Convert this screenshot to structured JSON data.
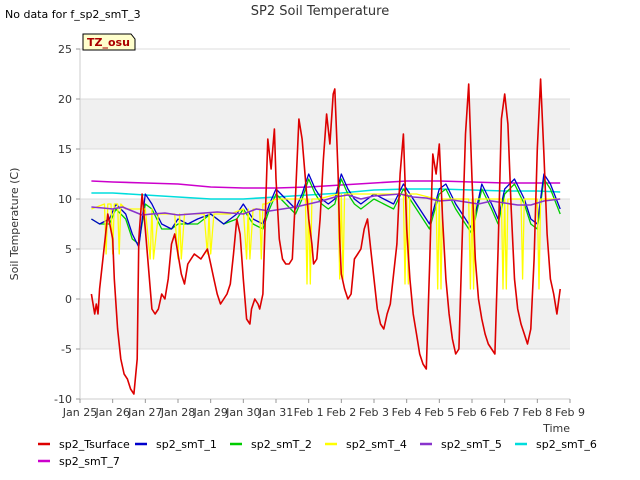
{
  "chart_data": {
    "type": "line",
    "title": "SP2 Soil Temperature",
    "note": "No data for f_sp2_smT_3",
    "badge": "TZ_osu",
    "xlabel": "Time",
    "ylabel": "Soil Temperature (C)",
    "ylim": [
      -10,
      25
    ],
    "yticks": [
      -10,
      -5,
      0,
      5,
      10,
      15,
      20,
      25
    ],
    "xlim": [
      0,
      15
    ],
    "xticks": [
      {
        "v": 0,
        "label": "Jan 25"
      },
      {
        "v": 1,
        "label": "Jan 26"
      },
      {
        "v": 2,
        "label": "Jan 27"
      },
      {
        "v": 3,
        "label": "Jan 28"
      },
      {
        "v": 4,
        "label": "Jan 29"
      },
      {
        "v": 5,
        "label": "Jan 30"
      },
      {
        "v": 6,
        "label": "Jan 31"
      },
      {
        "v": 7,
        "label": "Feb 1"
      },
      {
        "v": 8,
        "label": "Feb 2"
      },
      {
        "v": 9,
        "label": "Feb 3"
      },
      {
        "v": 10,
        "label": "Feb 4"
      },
      {
        "v": 11,
        "label": "Feb 5"
      },
      {
        "v": 12,
        "label": "Feb 6"
      },
      {
        "v": 13,
        "label": "Feb 7"
      },
      {
        "v": 14,
        "label": "Feb 8"
      },
      {
        "v": 15,
        "label": "Feb 9"
      }
    ],
    "grid": "horizontal bands",
    "legend_position": "bottom",
    "series": [
      {
        "name": "sp2_Tsurface",
        "color": "#dd0000",
        "width": 1.6,
        "x": [
          0.35,
          0.45,
          0.5,
          0.55,
          0.6,
          0.7,
          0.85,
          1.0,
          1.05,
          1.15,
          1.25,
          1.35,
          1.45,
          1.55,
          1.65,
          1.75,
          1.8,
          1.9,
          2.0,
          2.1,
          2.2,
          2.3,
          2.4,
          2.5,
          2.6,
          2.7,
          2.8,
          2.9,
          3.0,
          3.1,
          3.2,
          3.3,
          3.5,
          3.7,
          3.9,
          4.0,
          4.1,
          4.2,
          4.3,
          4.5,
          4.6,
          4.7,
          4.8,
          4.9,
          5.0,
          5.1,
          5.2,
          5.25,
          5.35,
          5.45,
          5.5,
          5.6,
          5.65,
          5.75,
          5.85,
          5.95,
          6.0,
          6.1,
          6.2,
          6.3,
          6.4,
          6.5,
          6.6,
          6.7,
          6.8,
          6.9,
          7.0,
          7.1,
          7.15,
          7.25,
          7.35,
          7.45,
          7.55,
          7.65,
          7.75,
          7.8,
          7.85,
          7.9,
          7.95,
          8.0,
          8.1,
          8.2,
          8.3,
          8.4,
          8.5,
          8.6,
          8.7,
          8.8,
          8.9,
          9.0,
          9.1,
          9.2,
          9.3,
          9.4,
          9.5,
          9.6,
          9.7,
          9.8,
          9.9,
          10.0,
          10.1,
          10.2,
          10.3,
          10.4,
          10.5,
          10.6,
          10.7,
          10.8,
          10.9,
          11.0,
          11.1,
          11.2,
          11.3,
          11.4,
          11.5,
          11.6,
          11.7,
          11.8,
          11.9,
          12.0,
          12.1,
          12.2,
          12.3,
          12.4,
          12.5,
          12.6,
          12.7,
          12.8,
          12.9,
          13.0,
          13.1,
          13.2,
          13.3,
          13.4,
          13.5,
          13.6,
          13.7,
          13.8,
          13.9,
          14.0,
          14.1,
          14.2,
          14.3,
          14.4,
          14.5,
          14.6,
          14.7
        ],
        "y": [
          0.5,
          -1.5,
          -0.5,
          -1.5,
          1.0,
          4.0,
          8.5,
          6.0,
          2.0,
          -3.0,
          -6.0,
          -7.5,
          -8.0,
          -9.0,
          -9.5,
          -6.0,
          6.0,
          10.5,
          7.0,
          3.0,
          -1.0,
          -1.5,
          -1.0,
          0.5,
          0.0,
          2.0,
          5.5,
          6.5,
          4.5,
          2.5,
          1.5,
          3.5,
          4.5,
          4.0,
          5.0,
          3.5,
          2.0,
          0.5,
          -0.5,
          0.5,
          1.5,
          4.5,
          8.0,
          6.5,
          2.0,
          -2.0,
          -2.5,
          -1.0,
          0.0,
          -0.5,
          -1.0,
          0.5,
          6.0,
          16.0,
          13.0,
          17.0,
          12.0,
          6.0,
          4.0,
          3.5,
          3.5,
          4.0,
          10.5,
          18.0,
          16.0,
          12.0,
          8.0,
          5.5,
          3.5,
          4.0,
          8.0,
          14.0,
          18.5,
          15.5,
          20.5,
          21.0,
          17.0,
          12.5,
          6.0,
          2.5,
          1.0,
          0.0,
          0.5,
          4.0,
          4.5,
          5.0,
          7.0,
          8.0,
          5.0,
          2.0,
          -1.0,
          -2.5,
          -3.0,
          -1.5,
          -0.5,
          2.5,
          5.5,
          12.5,
          16.5,
          7.0,
          2.0,
          -1.5,
          -3.5,
          -5.5,
          -6.5,
          -7.0,
          3.0,
          14.5,
          12.5,
          15.5,
          8.0,
          2.0,
          -1.5,
          -4.0,
          -5.5,
          -5.0,
          6.0,
          16.5,
          21.5,
          12.0,
          4.0,
          0.0,
          -2.0,
          -3.5,
          -4.5,
          -5.0,
          -5.5,
          5.0,
          18.0,
          20.5,
          17.5,
          9.0,
          2.0,
          -1.0,
          -2.5,
          -3.5,
          -4.5,
          -3.0,
          4.0,
          15.0,
          22.0,
          14.5,
          6.5,
          2.0,
          0.5,
          -1.5,
          1.0
        ]
      },
      {
        "name": "sp2_smT_1",
        "color": "#0000cc",
        "width": 1.3,
        "x": [
          0.35,
          0.6,
          0.9,
          1.1,
          1.4,
          1.6,
          1.8,
          2.0,
          2.2,
          2.5,
          2.8,
          3.0,
          3.3,
          3.6,
          4.0,
          4.4,
          4.8,
          5.0,
          5.3,
          5.6,
          5.8,
          6.0,
          6.3,
          6.6,
          6.8,
          7.0,
          7.2,
          7.4,
          7.6,
          7.8,
          8.0,
          8.2,
          8.4,
          8.6,
          8.8,
          9.0,
          9.3,
          9.6,
          9.9,
          10.1,
          10.4,
          10.7,
          11.0,
          11.2,
          11.5,
          11.8,
          12.0,
          12.3,
          12.6,
          12.8,
          13.0,
          13.3,
          13.6,
          13.8,
          14.0,
          14.2,
          14.4,
          14.7
        ],
        "y": [
          8.0,
          7.5,
          8.0,
          9.5,
          8.5,
          6.5,
          5.2,
          10.5,
          9.5,
          7.5,
          7.0,
          8.0,
          7.5,
          8.0,
          8.5,
          7.5,
          8.5,
          9.5,
          8.0,
          7.5,
          9.5,
          11.0,
          10.0,
          9.0,
          10.5,
          12.5,
          11.0,
          10.0,
          9.5,
          10.0,
          12.5,
          11.0,
          10.0,
          9.5,
          10.0,
          10.5,
          10.0,
          9.5,
          11.5,
          10.5,
          9.0,
          7.5,
          11.0,
          11.5,
          9.5,
          8.0,
          7.0,
          11.5,
          9.5,
          8.0,
          11.0,
          12.0,
          10.0,
          8.0,
          7.5,
          12.5,
          11.5,
          9.0
        ]
      },
      {
        "name": "sp2_smT_2",
        "color": "#00cc00",
        "width": 1.3,
        "x": [
          0.35,
          0.6,
          0.9,
          1.1,
          1.4,
          1.6,
          1.8,
          2.0,
          2.2,
          2.5,
          2.8,
          3.0,
          3.3,
          3.6,
          4.0,
          4.4,
          4.8,
          5.0,
          5.3,
          5.6,
          5.8,
          6.0,
          6.3,
          6.6,
          6.8,
          7.0,
          7.2,
          7.4,
          7.6,
          7.8,
          8.0,
          8.2,
          8.4,
          8.6,
          8.8,
          9.0,
          9.3,
          9.6,
          9.9,
          10.1,
          10.4,
          10.7,
          11.0,
          11.2,
          11.5,
          11.8,
          12.0,
          12.3,
          12.6,
          12.8,
          13.0,
          13.3,
          13.6,
          13.8,
          14.0,
          14.2,
          14.4,
          14.7
        ],
        "y": [
          8.0,
          7.5,
          7.5,
          9.0,
          8.0,
          6.0,
          5.5,
          9.5,
          9.0,
          7.0,
          7.0,
          7.5,
          7.5,
          7.5,
          8.5,
          7.5,
          8.0,
          9.0,
          7.5,
          7.0,
          9.0,
          10.5,
          9.5,
          8.5,
          10.0,
          12.0,
          10.5,
          9.5,
          9.0,
          9.5,
          12.0,
          10.5,
          9.5,
          9.0,
          9.5,
          10.0,
          9.5,
          9.0,
          11.0,
          10.0,
          8.5,
          7.0,
          10.5,
          11.0,
          9.0,
          7.5,
          6.5,
          11.0,
          9.0,
          7.5,
          10.5,
          11.5,
          9.5,
          7.5,
          7.0,
          12.0,
          11.0,
          8.5
        ]
      },
      {
        "name": "sp2_smT_4",
        "color": "#ffff00",
        "width": 1.3,
        "x": [
          0.35,
          0.75,
          0.8,
          0.85,
          0.95,
          1.0,
          1.05,
          1.15,
          1.2,
          1.25,
          1.4,
          2.0,
          2.15,
          2.2,
          2.25,
          2.4,
          2.9,
          3.0,
          3.05,
          3.1,
          3.2,
          3.8,
          3.9,
          3.95,
          4.0,
          4.1,
          4.6,
          5.0,
          5.1,
          5.15,
          5.2,
          5.3,
          5.5,
          5.55,
          5.6,
          5.7,
          6.0,
          6.9,
          6.95,
          7.0,
          7.05,
          7.1,
          7.3,
          7.9,
          7.95,
          8.0,
          8.05,
          8.1,
          8.3,
          9.0,
          9.9,
          9.95,
          10.0,
          10.05,
          10.1,
          10.3,
          10.9,
          10.95,
          11.0,
          11.05,
          11.1,
          11.3,
          11.9,
          11.95,
          12.0,
          12.05,
          12.1,
          12.3,
          12.9,
          12.95,
          13.0,
          13.05,
          13.1,
          13.3,
          13.5,
          13.55,
          13.6,
          13.7,
          13.9,
          14.0,
          14.05,
          14.1,
          14.3,
          14.7
        ],
        "y": [
          9.0,
          9.5,
          4.5,
          9.5,
          9.5,
          4.5,
          9.5,
          9.5,
          4.5,
          9.5,
          9.0,
          9.0,
          4.0,
          9.0,
          4.0,
          8.5,
          8.5,
          4.0,
          8.5,
          4.0,
          8.5,
          8.5,
          4.5,
          8.5,
          4.5,
          8.5,
          8.5,
          9.0,
          4.0,
          9.0,
          4.0,
          9.0,
          9.0,
          4.0,
          9.5,
          9.5,
          10.0,
          10.0,
          1.5,
          10.0,
          1.5,
          10.0,
          10.0,
          10.5,
          2.0,
          10.5,
          2.0,
          10.5,
          10.5,
          10.5,
          10.5,
          1.5,
          10.5,
          1.5,
          10.5,
          10.5,
          10.0,
          1.0,
          10.0,
          1.0,
          10.0,
          10.0,
          10.0,
          1.0,
          10.0,
          1.0,
          10.0,
          10.0,
          10.0,
          1.0,
          10.0,
          1.0,
          10.0,
          10.0,
          10.0,
          2.0,
          10.0,
          10.0,
          10.0,
          10.0,
          1.0,
          10.0,
          10.0,
          10.0
        ]
      },
      {
        "name": "sp2_smT_5",
        "color": "#8833cc",
        "width": 1.6,
        "x": [
          0.35,
          0.7,
          1.0,
          1.3,
          1.6,
          1.9,
          2.2,
          2.6,
          3.0,
          3.4,
          3.8,
          4.2,
          4.6,
          5.0,
          5.4,
          5.8,
          6.2,
          6.6,
          7.0,
          7.4,
          7.8,
          8.2,
          8.6,
          9.0,
          9.4,
          9.8,
          10.2,
          10.6,
          11.0,
          11.4,
          11.8,
          12.2,
          12.6,
          13.0,
          13.4,
          13.8,
          14.2,
          14.7
        ],
        "y": [
          9.2,
          9.1,
          9.0,
          9.2,
          8.8,
          8.4,
          8.5,
          8.6,
          8.4,
          8.5,
          8.6,
          8.7,
          8.6,
          8.5,
          9.0,
          8.8,
          9.0,
          9.2,
          9.5,
          9.8,
          10.2,
          10.4,
          10.0,
          10.3,
          10.4,
          10.5,
          10.2,
          10.1,
          9.8,
          9.9,
          9.7,
          9.5,
          9.8,
          9.6,
          9.4,
          9.4,
          9.8,
          10.0
        ]
      },
      {
        "name": "sp2_smT_6",
        "color": "#00dddd",
        "width": 1.6,
        "x": [
          0.35,
          1.0,
          2.0,
          3.0,
          4.0,
          5.0,
          6.0,
          7.0,
          8.0,
          9.0,
          10.0,
          11.0,
          12.0,
          13.0,
          14.0,
          14.7
        ],
        "y": [
          10.6,
          10.6,
          10.4,
          10.2,
          10.0,
          10.0,
          10.2,
          10.4,
          10.6,
          10.9,
          11.0,
          11.0,
          10.9,
          10.8,
          10.8,
          10.7
        ]
      },
      {
        "name": "sp2_smT_7",
        "color": "#cc00cc",
        "width": 1.6,
        "x": [
          0.35,
          1.0,
          2.0,
          3.0,
          4.0,
          5.0,
          6.0,
          7.0,
          8.0,
          9.0,
          10.0,
          11.0,
          12.0,
          13.0,
          14.0,
          14.7
        ],
        "y": [
          11.8,
          11.7,
          11.6,
          11.5,
          11.2,
          11.1,
          11.1,
          11.2,
          11.4,
          11.6,
          11.8,
          11.8,
          11.7,
          11.6,
          11.6,
          11.6
        ]
      }
    ]
  }
}
